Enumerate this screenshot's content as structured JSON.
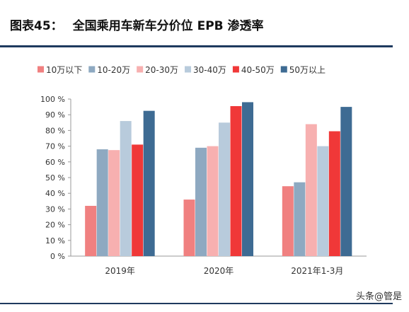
{
  "header": {
    "figure_label": "图表45：",
    "title": "全国乘用车新车分价位 EPB 渗透率"
  },
  "watermark": "头条@管是",
  "chart_data": {
    "type": "bar",
    "categories": [
      "2019年",
      "2020年",
      "2021年1-3月"
    ],
    "series": [
      {
        "name": "10万以下",
        "color": "#f08080",
        "values": [
          32,
          36,
          44.5
        ]
      },
      {
        "name": "10-20万",
        "color": "#8ea9c1",
        "values": [
          68,
          69,
          47
        ]
      },
      {
        "name": "20-30万",
        "color": "#f7b0b0",
        "values": [
          67.5,
          70,
          84
        ]
      },
      {
        "name": "30-40万",
        "color": "#b8cbdc",
        "values": [
          86,
          85,
          70
        ]
      },
      {
        "name": "40-50万",
        "color": "#f03838",
        "values": [
          71,
          95.5,
          79.5
        ]
      },
      {
        "name": "50万以上",
        "color": "#3e6b93",
        "values": [
          92.5,
          98,
          95
        ]
      }
    ],
    "y_ticks": [
      "0 %",
      "10 %",
      "20 %",
      "30 %",
      "40 %",
      "50 %",
      "60 %",
      "70 %",
      "80 %",
      "90 %",
      "100 %"
    ],
    "ylim": [
      0,
      100
    ],
    "legend_position": "top",
    "grid": false
  }
}
